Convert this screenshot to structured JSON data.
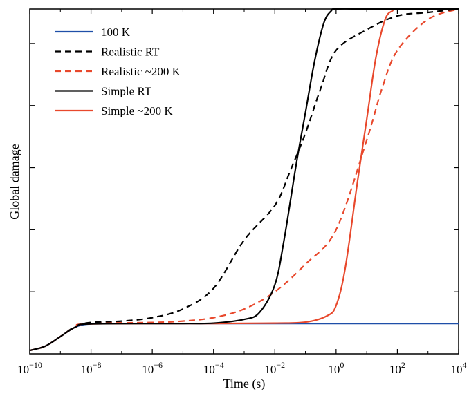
{
  "chart_data": {
    "type": "line",
    "xlabel": "Time (s)",
    "ylabel": "Global damage",
    "x_scale": "log",
    "xlim": [
      1e-10,
      10000
    ],
    "ylim": [
      0,
      1
    ],
    "x_ticks": [
      {
        "base": "10",
        "exp": "−10",
        "value": 1e-10
      },
      {
        "base": "10",
        "exp": "−8",
        "value": 1e-08
      },
      {
        "base": "10",
        "exp": "−6",
        "value": 1e-06
      },
      {
        "base": "10",
        "exp": "−4",
        "value": 0.0001
      },
      {
        "base": "10",
        "exp": "−2",
        "value": 0.01
      },
      {
        "base": "10",
        "exp": "0",
        "value": 1
      },
      {
        "base": "10",
        "exp": "2",
        "value": 100
      },
      {
        "base": "10",
        "exp": "4",
        "value": 10000
      }
    ],
    "y_ticks": [
      0.18,
      0.36,
      0.54,
      0.72,
      0.9
    ],
    "grid": false,
    "legend_position": "top-left",
    "series": [
      {
        "name": "100 K",
        "color": "#1f4fa8",
        "dash": "solid",
        "points": [
          [
            1e-10,
            0.01
          ],
          [
            3.16e-10,
            0.022
          ],
          [
            1e-09,
            0.05
          ],
          [
            3.16e-09,
            0.078
          ],
          [
            1e-08,
            0.087
          ],
          [
            1e-07,
            0.088
          ],
          [
            1e-06,
            0.088
          ],
          [
            0.0001,
            0.088
          ],
          [
            0.01,
            0.088
          ],
          [
            1,
            0.088
          ],
          [
            100,
            0.088
          ],
          [
            10000,
            0.088
          ]
        ]
      },
      {
        "name": "Realistic RT",
        "color": "#000000",
        "dash": "dashed",
        "points": [
          [
            1e-10,
            0.01
          ],
          [
            3.16e-10,
            0.022
          ],
          [
            1e-09,
            0.05
          ],
          [
            3.16e-09,
            0.08
          ],
          [
            1e-08,
            0.091
          ],
          [
            1e-07,
            0.095
          ],
          [
            1e-06,
            0.105
          ],
          [
            1e-05,
            0.13
          ],
          [
            0.0001,
            0.19
          ],
          [
            0.001,
            0.33
          ],
          [
            0.01,
            0.43
          ],
          [
            0.0316,
            0.53
          ],
          [
            0.1,
            0.64
          ],
          [
            0.316,
            0.77
          ],
          [
            1,
            0.88
          ],
          [
            10,
            0.94
          ],
          [
            100,
            0.98
          ],
          [
            1000,
            0.99
          ],
          [
            10000,
            1.0
          ]
        ]
      },
      {
        "name": "Realistic ~200 K",
        "color": "#e8482c",
        "dash": "dashed",
        "points": [
          [
            1e-10,
            0.01
          ],
          [
            3.16e-10,
            0.022
          ],
          [
            1e-09,
            0.05
          ],
          [
            3.16e-09,
            0.079
          ],
          [
            1e-08,
            0.088
          ],
          [
            1e-06,
            0.091
          ],
          [
            1e-05,
            0.095
          ],
          [
            0.0001,
            0.105
          ],
          [
            0.001,
            0.13
          ],
          [
            0.01,
            0.18
          ],
          [
            0.1,
            0.26
          ],
          [
            1,
            0.36
          ],
          [
            10,
            0.62
          ],
          [
            31.6,
            0.77
          ],
          [
            100,
            0.88
          ],
          [
            1000,
            0.97
          ],
          [
            10000,
            1.0
          ]
        ]
      },
      {
        "name": "Simple RT",
        "color": "#000000",
        "dash": "solid",
        "points": [
          [
            1e-10,
            0.01
          ],
          [
            3.16e-10,
            0.022
          ],
          [
            1e-09,
            0.05
          ],
          [
            3.16e-09,
            0.078
          ],
          [
            1e-08,
            0.087
          ],
          [
            1e-05,
            0.088
          ],
          [
            0.0001,
            0.089
          ],
          [
            0.001,
            0.1
          ],
          [
            0.00316,
            0.12
          ],
          [
            0.01,
            0.2
          ],
          [
            0.02,
            0.33
          ],
          [
            0.05,
            0.55
          ],
          [
            0.1,
            0.7
          ],
          [
            0.2,
            0.85
          ],
          [
            0.4,
            0.96
          ],
          [
            0.7,
            0.995
          ],
          [
            1,
            1.0
          ],
          [
            10,
            1.0
          ],
          [
            100,
            1.0
          ],
          [
            10000,
            1.0
          ]
        ]
      },
      {
        "name": "Simple ~200 K",
        "color": "#e8482c",
        "dash": "solid",
        "points": [
          [
            1e-10,
            0.01
          ],
          [
            3.16e-10,
            0.022
          ],
          [
            1e-09,
            0.05
          ],
          [
            3.16e-09,
            0.078
          ],
          [
            1e-08,
            0.087
          ],
          [
            0.0001,
            0.088
          ],
          [
            0.01,
            0.089
          ],
          [
            0.1,
            0.092
          ],
          [
            0.5,
            0.11
          ],
          [
            1,
            0.14
          ],
          [
            2,
            0.25
          ],
          [
            5,
            0.5
          ],
          [
            10,
            0.68
          ],
          [
            20,
            0.86
          ],
          [
            40,
            0.97
          ],
          [
            70,
            0.995
          ],
          [
            100,
            1.0
          ],
          [
            1000,
            1.0
          ],
          [
            10000,
            1.0
          ]
        ]
      }
    ]
  }
}
